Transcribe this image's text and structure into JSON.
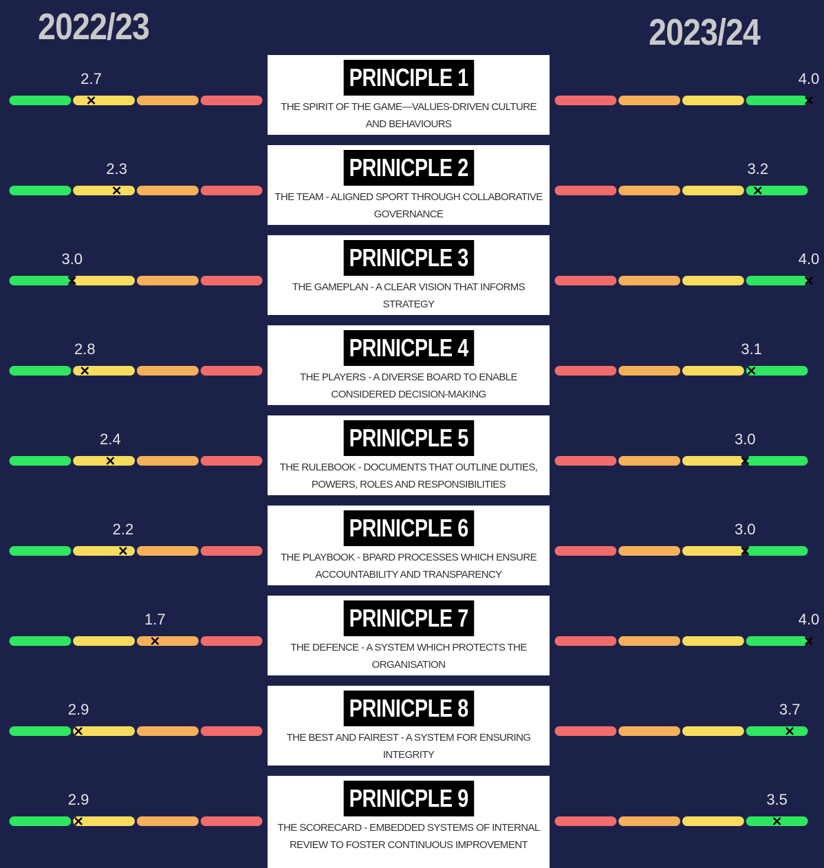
{
  "chart_data": {
    "type": "scale",
    "xlim": [
      0,
      4
    ],
    "scale_colors": [
      "#f26b6b",
      "#f5b05a",
      "#f7dd5e",
      "#2ee65f"
    ],
    "categories": [
      "PRINCIPLE 1",
      "PRINICPLE 2",
      "PRINICPLE 3",
      "PRINICPLE 4",
      "PRINICPLE 5",
      "PRINICPLE 6",
      "PRINICPLE 7",
      "PRINICPLE 8",
      "PRINICPLE 9"
    ],
    "descriptions": [
      "THE SPIRIT OF THE GAME—VALUES-DRIVEN CULTURE AND BEHAVIOURS",
      "THE TEAM - ALIGNED SPORT THROUGH COLLABORATIVE GOVERNANCE",
      "THE GAMEPLAN - A CLEAR VISION THAT INFORMS STRATEGY",
      "THE PLAYERS - A DIVERSE BOARD TO ENABLE CONSIDERED DECISION-MAKING",
      "THE RULEBOOK - DOCUMENTS THAT OUTLINE DUTIES, POWERS, ROLES AND RESPONSIBILITIES",
      "THE PLAYBOOK - BPARD PROCESSES WHICH ENSURE ACCOUNTABILITY AND TRANSPARENCY",
      "THE DEFENCE - A SYSTEM WHICH PROTECTS THE ORGANISATION",
      "THE BEST AND FAIREST - A SYSTEM FOR ENSURING INTEGRITY",
      "THE SCORECARD - EMBEDDED SYSTEMS OF INTERNAL REVIEW TO FOSTER CONTINUOUS IMPROVEMENT"
    ],
    "series": [
      {
        "name": "2022/23",
        "values": [
          2.7,
          2.3,
          3.0,
          2.8,
          2.4,
          2.2,
          1.7,
          2.9,
          2.9
        ],
        "value_labels": [
          "2.7",
          "2.3",
          "3.0",
          "2.8",
          "2.4",
          "2.2",
          "1.7",
          "2.9",
          "2.9"
        ]
      },
      {
        "name": "2023/24",
        "values": [
          4.0,
          3.2,
          4.0,
          3.1,
          3.0,
          3.0,
          4.0,
          3.7,
          3.5
        ],
        "value_labels": [
          "4.0",
          "3.2",
          "4.0",
          "3.1",
          "3.0",
          "3.0",
          "4.0",
          "3.7",
          "3.5"
        ]
      }
    ]
  }
}
